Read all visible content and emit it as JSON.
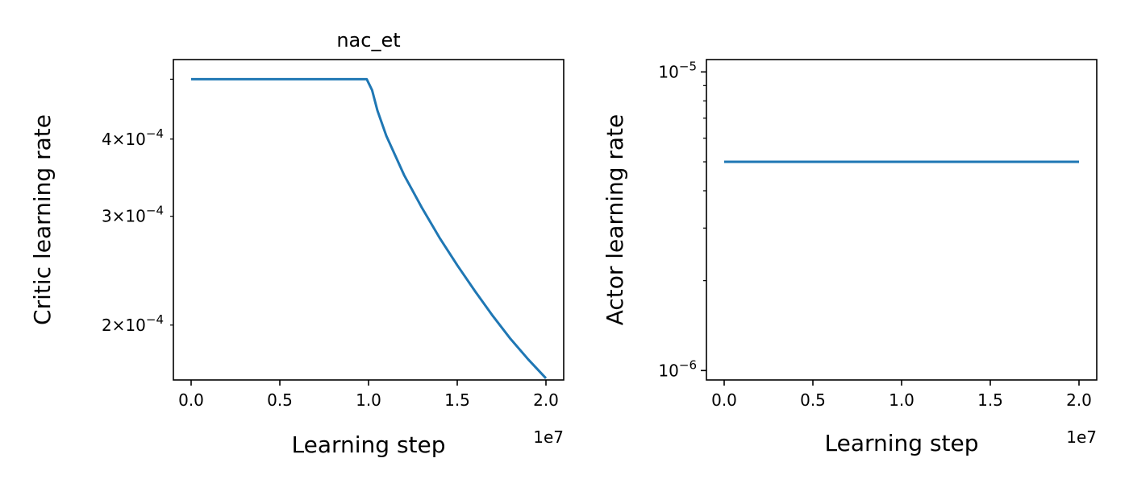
{
  "chart_data": [
    {
      "type": "line",
      "title": "nac_et",
      "xlabel": "Learning step",
      "ylabel": "Critic learning rate",
      "x_offset_label": "1e7",
      "y_scale": "log",
      "xlim": [
        -0.1,
        2.1
      ],
      "ylim": [
        0.000163,
        0.000538
      ],
      "grid": false,
      "x_ticks": [
        0.0,
        0.5,
        1.0,
        1.5,
        2.0
      ],
      "x_tick_labels": [
        "0.0",
        "0.5",
        "1.0",
        "1.5",
        "2.0"
      ],
      "y_major_ticks": [],
      "y_minor_ticks": [
        0.0002,
        0.0003,
        0.0004,
        0.0005
      ],
      "y_minor_tick_labels": [
        {
          "value": 0.0002,
          "mantissa": "2",
          "exponent": "−4"
        },
        {
          "value": 0.0003,
          "mantissa": "3",
          "exponent": "−4"
        },
        {
          "value": 0.0004,
          "mantissa": "4",
          "exponent": "−4"
        }
      ],
      "series": [
        {
          "color": "#1f77b4",
          "x": [
            0.0,
            0.2,
            0.4,
            0.6,
            0.8,
            0.99,
            1.02,
            1.05,
            1.1,
            1.2,
            1.3,
            1.4,
            1.5,
            1.6,
            1.7,
            1.8,
            1.9,
            2.0
          ],
          "y": [
            0.0005,
            0.0005,
            0.0005,
            0.0005,
            0.0005,
            0.0005,
            0.00048,
            0.000445,
            0.000405,
            0.00035,
            0.00031,
            0.000277,
            0.00025,
            0.000227,
            0.000207,
            0.00019,
            0.000176,
            0.000164
          ]
        }
      ]
    },
    {
      "type": "line",
      "title": "",
      "xlabel": "Learning step",
      "ylabel": "Actor learning rate",
      "x_offset_label": "1e7",
      "y_scale": "log",
      "xlim": [
        -0.1,
        2.1
      ],
      "ylim": [
        9.3e-07,
        1.1e-05
      ],
      "grid": false,
      "x_ticks": [
        0.0,
        0.5,
        1.0,
        1.5,
        2.0
      ],
      "x_tick_labels": [
        "0.0",
        "0.5",
        "1.0",
        "1.5",
        "2.0"
      ],
      "y_major_ticks": [
        1e-06,
        1e-05
      ],
      "y_major_tick_labels": [
        {
          "value": 1e-06,
          "mantissa": "10",
          "exponent": "−6"
        },
        {
          "value": 1e-05,
          "mantissa": "10",
          "exponent": "−5"
        }
      ],
      "y_minor_ticks": [
        2e-06,
        3e-06,
        4e-06,
        5e-06,
        6e-06,
        7e-06,
        8e-06,
        9e-06
      ],
      "y_minor_tick_labels": [],
      "series": [
        {
          "color": "#1f77b4",
          "x": [
            0.0,
            2.0
          ],
          "y": [
            5e-06,
            5e-06
          ]
        }
      ]
    }
  ]
}
